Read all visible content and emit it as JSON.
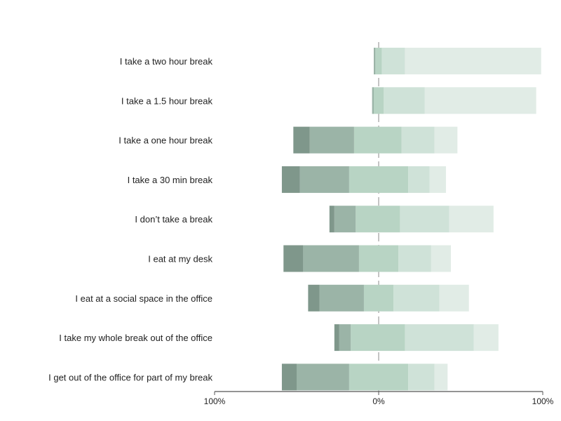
{
  "chart_data": {
    "type": "bar",
    "orientation": "horizontal",
    "stacking": "diverging",
    "categories": [
      "I take a two hour break",
      "I take a 1.5 hour break",
      "I take a one hour break",
      "I take a 30 min break",
      "I don’t take a break",
      "I eat at my desk",
      "I eat at a social space in the office",
      "I take my whole break out of the office",
      "I get out of the office for part of my break"
    ],
    "series": [
      {
        "color": "#7f978b",
        "values": [
          0,
          0,
          -10,
          -11,
          -3,
          -12,
          -7,
          -3,
          -9
        ]
      },
      {
        "color": "#9bb4a7",
        "values": [
          -1,
          -1,
          -27,
          -30,
          -13,
          -34,
          -27,
          -7,
          -32
        ]
      },
      {
        "color": "#b8d4c4",
        "values": [
          -2,
          -3,
          -15,
          -18,
          -14,
          -12,
          -9,
          -17,
          -18
        ]
      },
      {
        "color": "#b8d4c4",
        "values": [
          2,
          3,
          14,
          18,
          13,
          12,
          9,
          16,
          18
        ]
      },
      {
        "color": "#cfe2d8",
        "values": [
          14,
          25,
          20,
          13,
          30,
          20,
          28,
          42,
          16
        ]
      },
      {
        "color": "#e1ece6",
        "values": [
          83,
          68,
          14,
          10,
          27,
          12,
          18,
          15,
          8
        ]
      }
    ],
    "xlim": [
      -100,
      100
    ],
    "x_ticks": [
      {
        "value": -100,
        "label": "100%"
      },
      {
        "value": 0,
        "label": "0%"
      },
      {
        "value": 100,
        "label": "100%"
      }
    ],
    "center_line": true,
    "grid": false,
    "legend": "none",
    "title": "",
    "xlabel": "",
    "ylabel": ""
  }
}
